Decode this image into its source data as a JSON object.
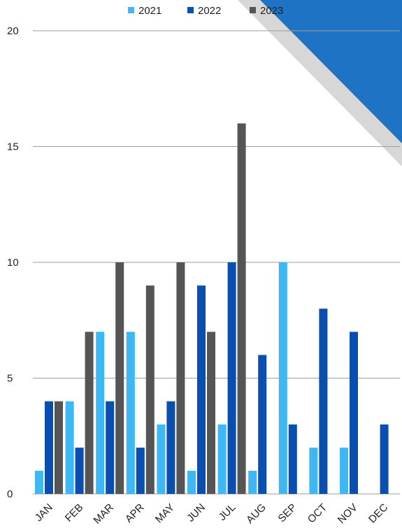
{
  "chart_data": {
    "type": "bar",
    "title": "",
    "xlabel": "",
    "ylabel": "",
    "categories": [
      "JAN",
      "FEB",
      "MAR",
      "APR",
      "MAY",
      "JUN",
      "JUL",
      "AUG",
      "SEP",
      "OCT",
      "NOV",
      "DEC"
    ],
    "series": [
      {
        "name": "2021",
        "color": "#3db8f5",
        "values": [
          1,
          4,
          7,
          7,
          3,
          1,
          3,
          1,
          10,
          2,
          2,
          0
        ]
      },
      {
        "name": "2022",
        "color": "#0a4eb0",
        "values": [
          4,
          2,
          4,
          2,
          4,
          9,
          10,
          6,
          3,
          8,
          7,
          3
        ]
      },
      {
        "name": "2023",
        "color": "#555555",
        "values": [
          4,
          7,
          10,
          9,
          10,
          7,
          16,
          0,
          0,
          0,
          0,
          0
        ]
      }
    ],
    "yticks": [
      0,
      5,
      10,
      15,
      20
    ],
    "ylim": [
      0,
      20
    ],
    "grid": true,
    "legend_position": "top-center",
    "decoration_colors": {
      "shadow": "#d7d7d7",
      "accent": "#1f73c4"
    }
  }
}
